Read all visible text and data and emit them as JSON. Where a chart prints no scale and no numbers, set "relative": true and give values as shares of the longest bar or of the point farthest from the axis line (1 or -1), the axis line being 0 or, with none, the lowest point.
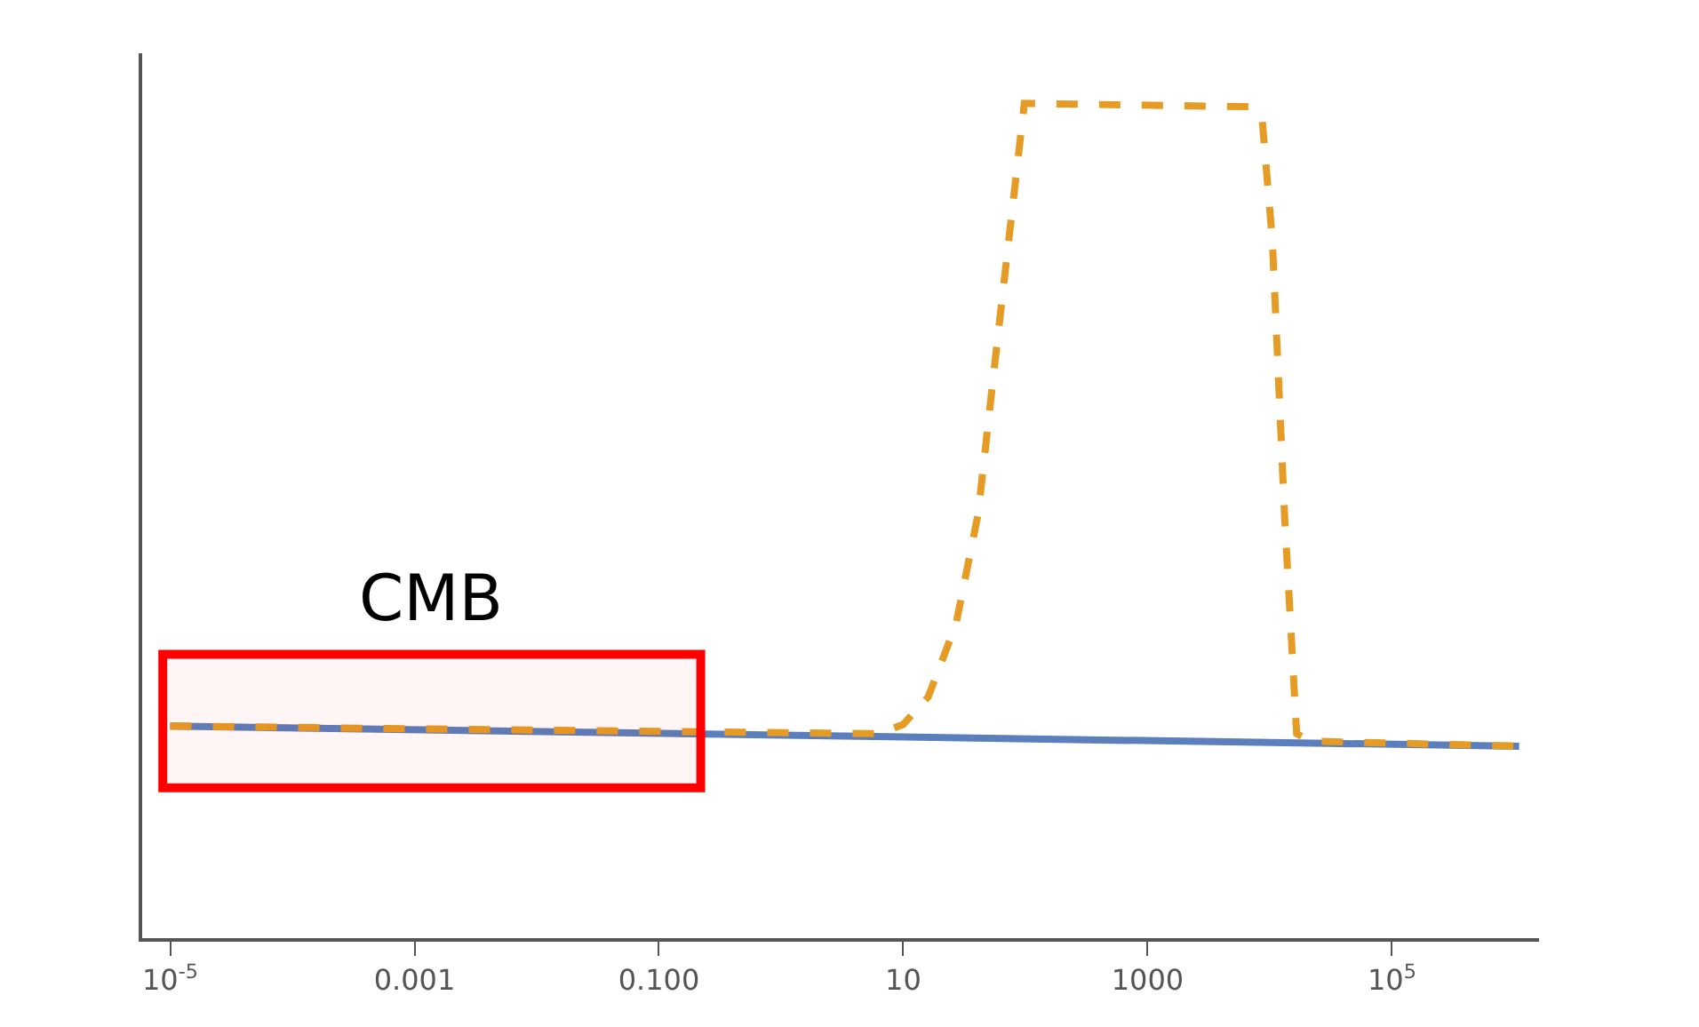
{
  "chart_data": {
    "type": "line",
    "relative": true,
    "log": "x",
    "xlim": [
      5.9e-06,
      1600000.0
    ],
    "xticks": [
      {
        "value": 1e-05,
        "label": "10$^{-5}$"
      },
      {
        "value": 0.001,
        "label": "0.001"
      },
      {
        "value": 0.1,
        "label": "0.100"
      },
      {
        "value": 10,
        "label": "10"
      },
      {
        "value": 1000,
        "label": "1000"
      },
      {
        "value": 100000,
        "label": "10$^{5}$"
      }
    ],
    "series": [
      {
        "color": "#5b7fbc",
        "line_style": "solid",
        "x": [
          1e-05,
          1100000.0
        ],
        "values": [
          0.254,
          0.23
        ]
      },
      {
        "color": "#e69c24",
        "line_style": "dashed",
        "x": [
          1e-05,
          6.2,
          10,
          16,
          27,
          41,
          60,
          98,
          6900,
          8700,
          10500,
          13200,
          16600,
          21400,
          1100000.0
        ],
        "values": [
          0.254,
          0.245,
          0.256,
          0.289,
          0.376,
          0.508,
          0.726,
          1,
          0.996,
          0.978,
          0.836,
          0.508,
          0.245,
          0.236,
          0.23
        ]
      }
    ],
    "bands": [
      {
        "axis": "x",
        "from": 8.7e-06,
        "to": 0.22,
        "label": "CMB",
        "color": "#ff0000"
      }
    ],
    "legend": false
  }
}
